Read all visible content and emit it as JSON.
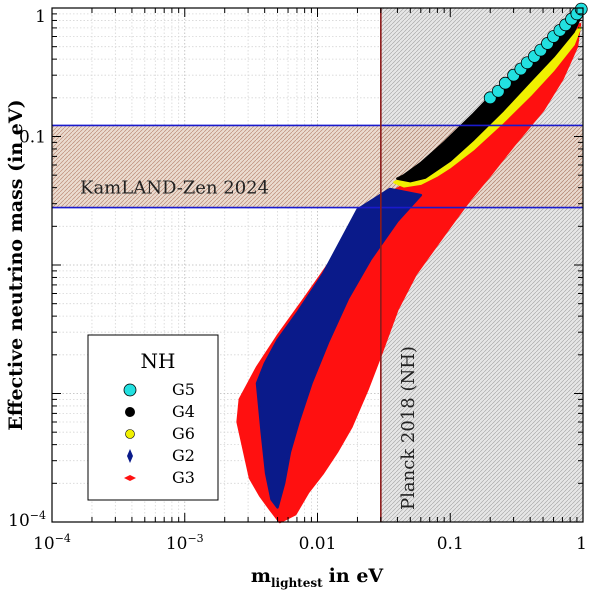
{
  "chart_data": {
    "type": "scatter",
    "title": "",
    "xlabel": {
      "main": "m",
      "sub": "lightest",
      "unit": "in eV"
    },
    "ylabel": "Effective neutrino mass (in eV)",
    "xscale": "log",
    "yscale": "log",
    "xlim": [
      0.0001,
      1
    ],
    "ylim": [
      0.0001,
      1
    ],
    "x_ticks": [
      {
        "value": 0.0001,
        "base": "10",
        "exp": "−4"
      },
      {
        "value": 0.001,
        "base": "10",
        "exp": "−3"
      },
      {
        "value": 0.01,
        "label": "0.01"
      },
      {
        "value": 0.1,
        "label": "0.1"
      },
      {
        "value": 1,
        "label": "1"
      }
    ],
    "y_ticks": [
      {
        "value": 0.0001,
        "base": "10",
        "exp": "−4"
      },
      {
        "value": 0.1,
        "label": "0.1"
      },
      {
        "value": 1,
        "label": "1"
      }
    ],
    "grid": true,
    "bands": [
      {
        "name": "KamLAND-Zen 2024",
        "orientation": "horizontal",
        "range": [
          0.028,
          0.122
        ],
        "edge_color": "#1a1acc",
        "fill": "#c8a088"
      },
      {
        "name": "Planck 2018 (NH)",
        "orientation": "vertical",
        "range": [
          0.03,
          1
        ],
        "edge_color": "#8b1a1a",
        "fill": "#c8c8c8"
      }
    ],
    "legend": {
      "title": "NH",
      "position": "bottom-left",
      "entries": [
        {
          "label": "G5",
          "color": "#22e0e0",
          "marker": "circle-large"
        },
        {
          "label": "G4",
          "color": "#000000",
          "marker": "circle"
        },
        {
          "label": "G6",
          "color": "#f0f000",
          "marker": "circle-small"
        },
        {
          "label": "G2",
          "color": "#0a1a8a",
          "marker": "diamond"
        },
        {
          "label": "G3",
          "color": "#ff1010",
          "marker": "diamond-wide"
        }
      ]
    },
    "series": [
      {
        "name": "G3",
        "color": "#ff1010",
        "region": [
          [
            0.0025,
            0.0006
          ],
          [
            0.0031,
            0.00022
          ],
          [
            0.0037,
            0.00016
          ],
          [
            0.0044,
            0.000125
          ],
          [
            0.0052,
            0.0001
          ],
          [
            0.0068,
            0.000115
          ],
          [
            0.0085,
            0.00017
          ],
          [
            0.011,
            0.00024
          ],
          [
            0.014,
            0.00035
          ],
          [
            0.018,
            0.00055
          ],
          [
            0.024,
            0.0011
          ],
          [
            0.03,
            0.002
          ],
          [
            0.04,
            0.0045
          ],
          [
            0.055,
            0.0085
          ],
          [
            0.07,
            0.012
          ],
          [
            0.1,
            0.02
          ],
          [
            0.14,
            0.032
          ],
          [
            0.2,
            0.05
          ],
          [
            0.3,
            0.085
          ],
          [
            0.5,
            0.16
          ],
          [
            0.7,
            0.28
          ],
          [
            0.9,
            0.5
          ],
          [
            0.95,
            0.75
          ],
          [
            0.7,
            0.5
          ],
          [
            0.5,
            0.38
          ],
          [
            0.3,
            0.23
          ],
          [
            0.2,
            0.155
          ],
          [
            0.14,
            0.11
          ],
          [
            0.1,
            0.08
          ],
          [
            0.07,
            0.058
          ],
          [
            0.05,
            0.045
          ],
          [
            0.035,
            0.036
          ],
          [
            0.02,
            0.02
          ],
          [
            0.012,
            0.01
          ],
          [
            0.008,
            0.0055
          ],
          [
            0.005,
            0.0028
          ],
          [
            0.0035,
            0.0016
          ],
          [
            0.0026,
            0.0009
          ]
        ]
      },
      {
        "name": "G2",
        "color": "#0a1a8a",
        "region": [
          [
            0.0035,
            0.0012
          ],
          [
            0.0038,
            0.0005
          ],
          [
            0.0041,
            0.00024
          ],
          [
            0.0045,
            0.00015
          ],
          [
            0.005,
            0.00013
          ],
          [
            0.0056,
            0.0002
          ],
          [
            0.0062,
            0.00035
          ],
          [
            0.0072,
            0.0006
          ],
          [
            0.009,
            0.0012
          ],
          [
            0.012,
            0.0025
          ],
          [
            0.017,
            0.0055
          ],
          [
            0.025,
            0.011
          ],
          [
            0.04,
            0.022
          ],
          [
            0.06,
            0.035
          ],
          [
            0.035,
            0.039
          ],
          [
            0.02,
            0.027
          ],
          [
            0.011,
            0.0085
          ],
          [
            0.007,
            0.0042
          ],
          [
            0.005,
            0.0026
          ],
          [
            0.004,
            0.0017
          ]
        ]
      },
      {
        "name": "G6",
        "color": "#f0f000",
        "region": [
          [
            0.038,
            0.044
          ],
          [
            0.045,
            0.041
          ],
          [
            0.06,
            0.043
          ],
          [
            0.08,
            0.05
          ],
          [
            0.1,
            0.058
          ],
          [
            0.15,
            0.08
          ],
          [
            0.25,
            0.13
          ],
          [
            0.4,
            0.21
          ],
          [
            0.6,
            0.33
          ],
          [
            0.85,
            0.52
          ],
          [
            0.95,
            0.7
          ],
          [
            0.8,
            0.58
          ],
          [
            0.5,
            0.36
          ],
          [
            0.3,
            0.21
          ],
          [
            0.15,
            0.11
          ],
          [
            0.08,
            0.065
          ],
          [
            0.05,
            0.05
          ]
        ]
      },
      {
        "name": "G4",
        "color": "#000000",
        "region": [
          [
            0.04,
            0.047
          ],
          [
            0.05,
            0.045
          ],
          [
            0.065,
            0.048
          ],
          [
            0.1,
            0.065
          ],
          [
            0.15,
            0.095
          ],
          [
            0.25,
            0.16
          ],
          [
            0.4,
            0.27
          ],
          [
            0.6,
            0.42
          ],
          [
            0.85,
            0.65
          ],
          [
            0.97,
            0.88
          ],
          [
            0.9,
            0.95
          ],
          [
            0.6,
            0.62
          ],
          [
            0.4,
            0.42
          ],
          [
            0.25,
            0.26
          ],
          [
            0.15,
            0.15
          ],
          [
            0.09,
            0.09
          ],
          [
            0.06,
            0.062
          ],
          [
            0.045,
            0.05
          ]
        ]
      },
      {
        "name": "G5",
        "color": "#22e0e0",
        "points": [
          [
            0.2,
            0.2
          ],
          [
            0.23,
            0.225
          ],
          [
            0.26,
            0.26
          ],
          [
            0.3,
            0.3
          ],
          [
            0.34,
            0.335
          ],
          [
            0.38,
            0.375
          ],
          [
            0.43,
            0.42
          ],
          [
            0.48,
            0.47
          ],
          [
            0.54,
            0.53
          ],
          [
            0.6,
            0.6
          ],
          [
            0.67,
            0.67
          ],
          [
            0.74,
            0.74
          ],
          [
            0.82,
            0.82
          ],
          [
            0.9,
            0.9
          ],
          [
            0.97,
            0.98
          ]
        ]
      }
    ]
  }
}
